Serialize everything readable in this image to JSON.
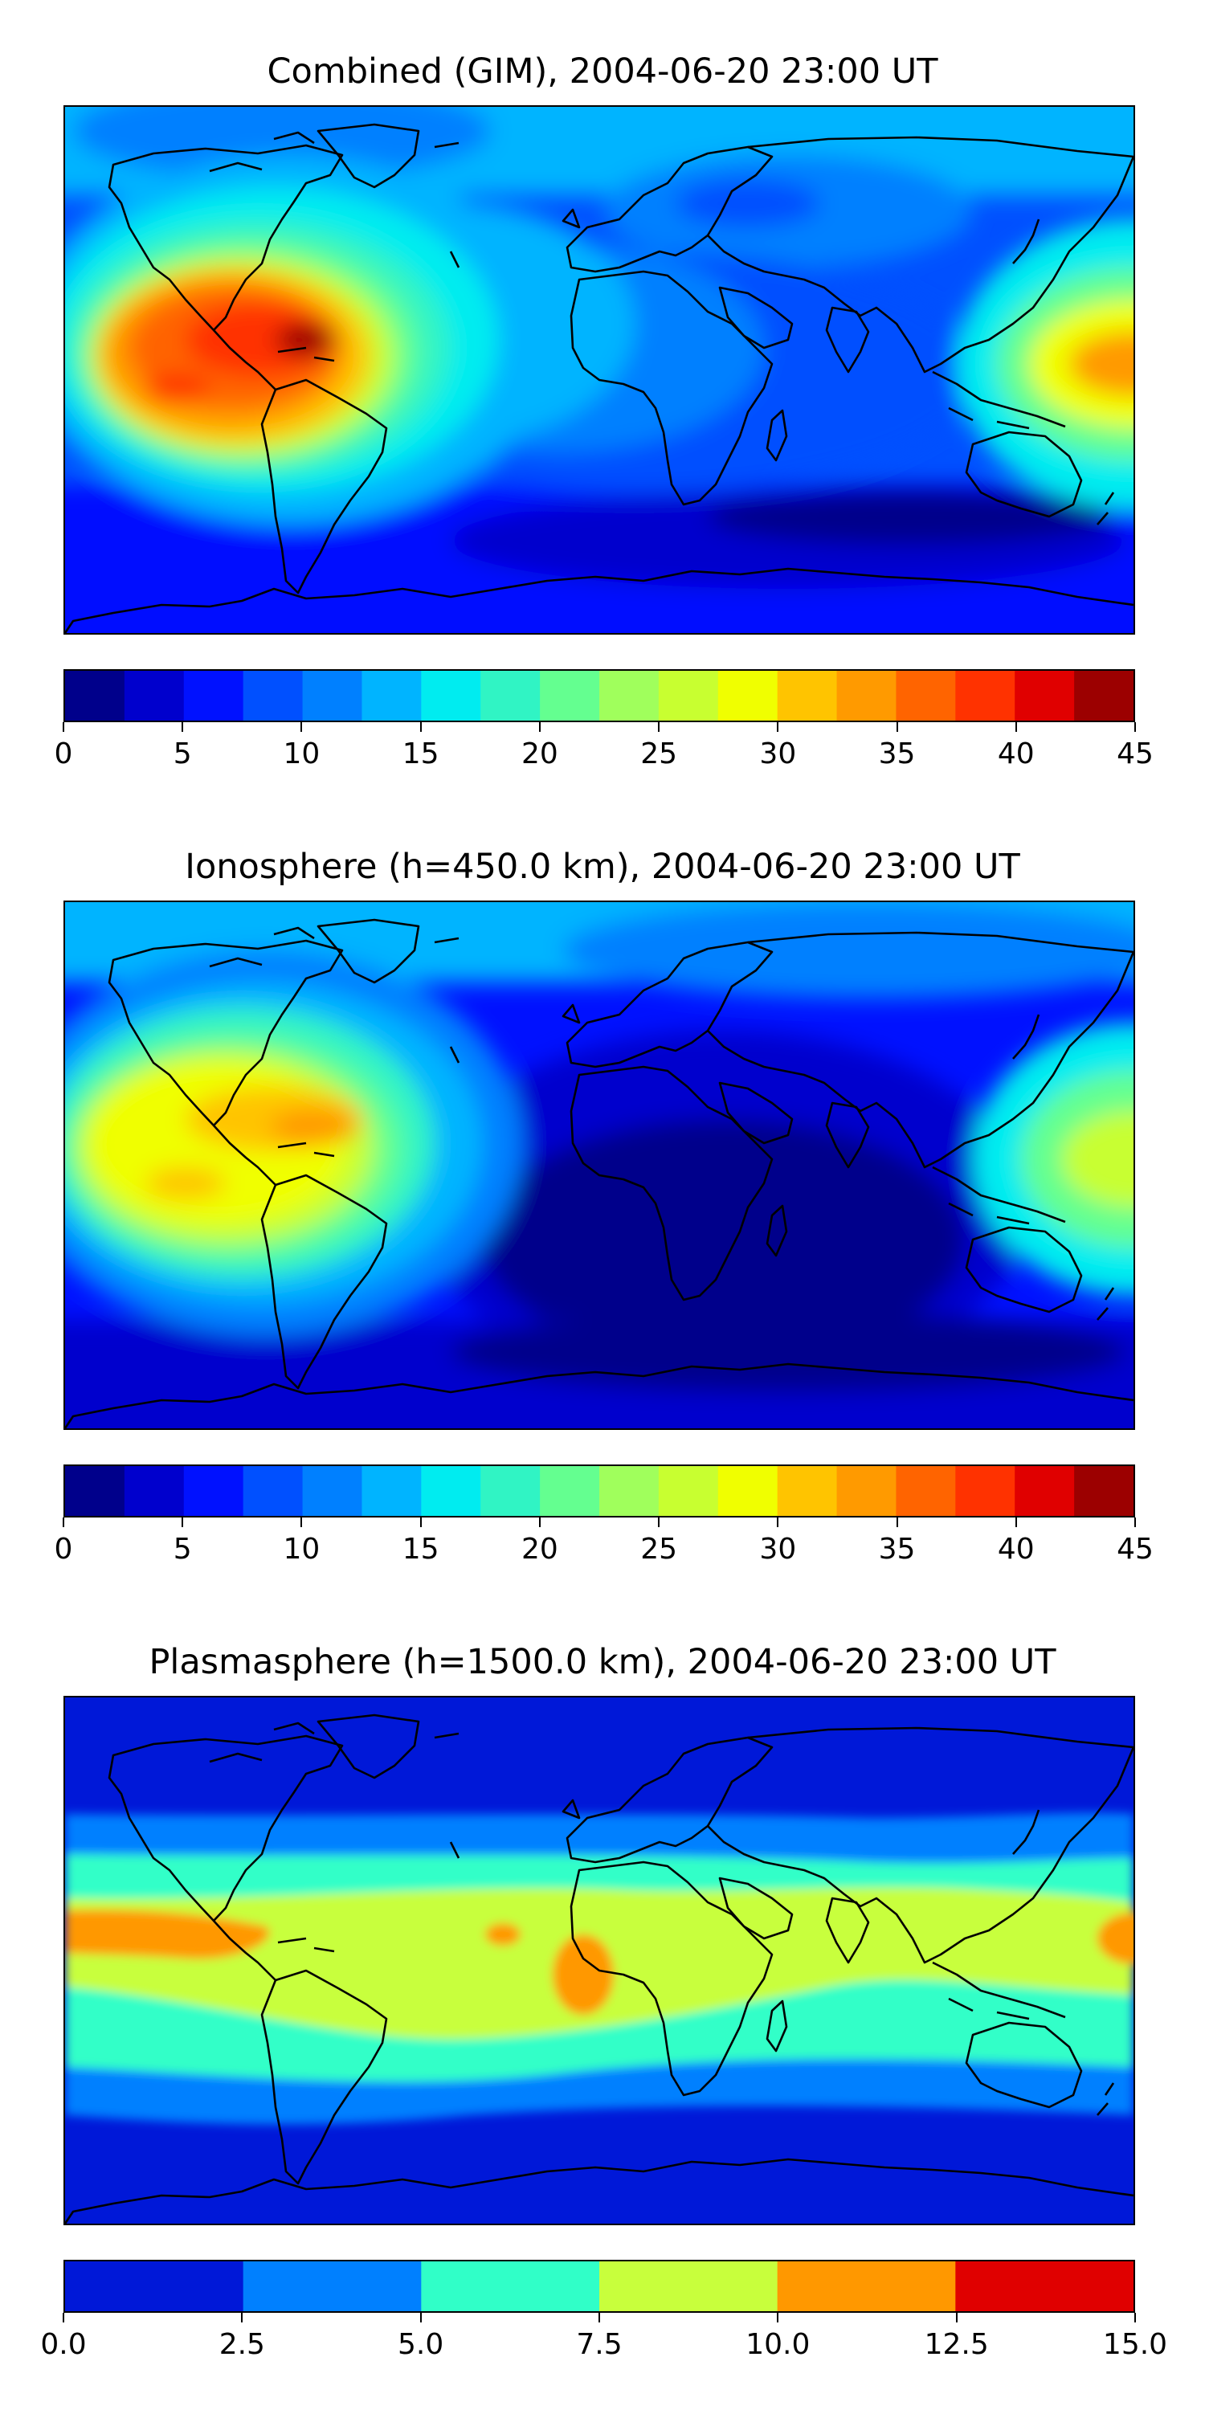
{
  "panels": [
    {
      "title": "Combined (GIM), 2004-06-20 23:00 UT",
      "colorbar": {
        "min": 0,
        "max": 45,
        "tick_labels": [
          "0",
          "5",
          "10",
          "15",
          "20",
          "25",
          "30",
          "35",
          "40",
          "45"
        ],
        "colors": [
          "#00008b",
          "#0000cd",
          "#0011ff",
          "#0050ff",
          "#0080ff",
          "#00b4ff",
          "#00ecf0",
          "#30f4c4",
          "#64ff90",
          "#a0ff5c",
          "#c8ff30",
          "#f0ff00",
          "#ffc400",
          "#ff9a00",
          "#ff6400",
          "#ff3200",
          "#e00000",
          "#9c0000"
        ]
      }
    },
    {
      "title": "Ionosphere  (h=450.0 km), 2004-06-20 23:00 UT",
      "colorbar": {
        "min": 0,
        "max": 45,
        "tick_labels": [
          "0",
          "5",
          "10",
          "15",
          "20",
          "25",
          "30",
          "35",
          "40",
          "45"
        ],
        "colors": [
          "#00008b",
          "#0000cd",
          "#0011ff",
          "#0050ff",
          "#0080ff",
          "#00b4ff",
          "#00ecf0",
          "#30f4c4",
          "#64ff90",
          "#a0ff5c",
          "#c8ff30",
          "#f0ff00",
          "#ffc400",
          "#ff9a00",
          "#ff6400",
          "#ff3200",
          "#e00000",
          "#9c0000"
        ]
      }
    },
    {
      "title": "Plasmasphere (h=1500.0 km), 2004-06-20 23:00 UT",
      "colorbar": {
        "min": 0,
        "max": 15,
        "tick_labels": [
          "0.0",
          "2.5",
          "5.0",
          "7.5",
          "10.0",
          "12.5",
          "15.0"
        ],
        "colors": [
          "#0018d8",
          "#0080ff",
          "#30ffc8",
          "#c8ff3c",
          "#ff9800",
          "#e00000"
        ]
      }
    }
  ]
}
